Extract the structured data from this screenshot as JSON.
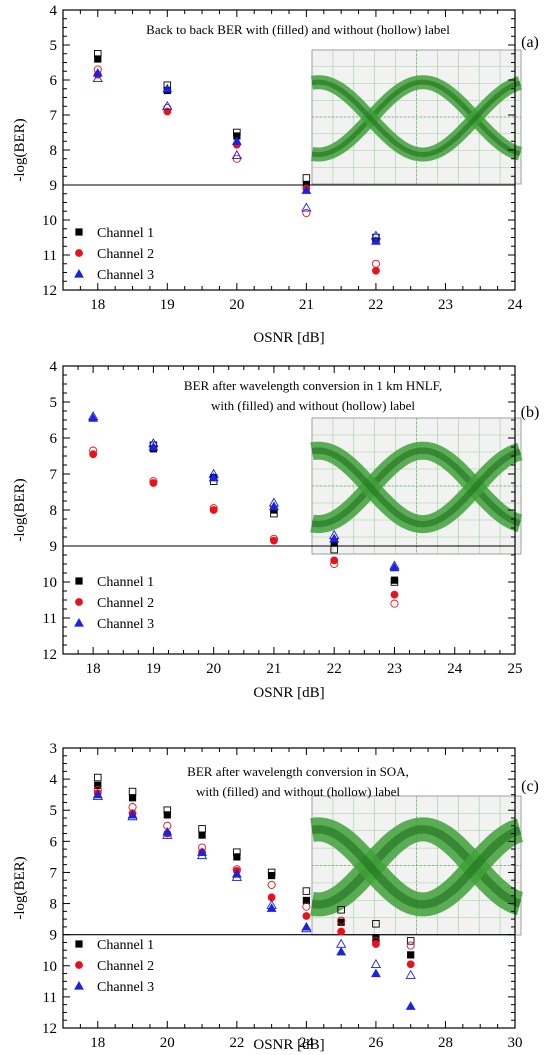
{
  "chart_data": [
    {
      "panel": "(a)",
      "type": "scatter",
      "title_lines": [
        "Back to back BER with (filled) and without (hollow) label"
      ],
      "xlabel": "OSNR [dB]",
      "ylabel": "-log(BER)",
      "xlim": [
        17.5,
        24
      ],
      "ylim": [
        4,
        12
      ],
      "y_inverted": true,
      "xticks": [
        18,
        19,
        20,
        21,
        22,
        23,
        24
      ],
      "yticks": [
        4,
        5,
        6,
        7,
        8,
        9,
        10,
        11,
        12
      ],
      "threshold": 9,
      "inset": "eye diagram",
      "legend_position": "bottom-left",
      "series": [
        {
          "name": "Channel 1",
          "color": "#000000",
          "marker": "square",
          "filled": {
            "x": [
              18,
              19,
              20,
              21,
              22
            ],
            "y": [
              5.4,
              6.3,
              7.6,
              9.0,
              10.6
            ]
          },
          "hollow": {
            "x": [
              18,
              19,
              20,
              21,
              22
            ],
            "y": [
              5.25,
              6.15,
              7.5,
              8.8,
              10.5
            ]
          }
        },
        {
          "name": "Channel 2",
          "color": "#e8121b",
          "marker": "circle",
          "filled": {
            "x": [
              18,
              19,
              20,
              21,
              22
            ],
            "y": [
              5.85,
              6.9,
              7.85,
              9.1,
              11.45
            ]
          },
          "hollow": {
            "x": [
              18,
              19,
              20,
              21,
              22
            ],
            "y": [
              5.7,
              6.8,
              8.25,
              9.8,
              11.25
            ]
          }
        },
        {
          "name": "Channel 3",
          "color": "#1a23e0",
          "marker": "triangle",
          "filled": {
            "x": [
              18,
              19,
              20,
              21,
              22
            ],
            "y": [
              5.8,
              6.25,
              7.75,
              9.15,
              10.6
            ]
          },
          "hollow": {
            "x": [
              18,
              19,
              20,
              21,
              22
            ],
            "y": [
              5.95,
              6.75,
              8.15,
              9.65,
              10.45
            ]
          }
        }
      ]
    },
    {
      "panel": "(b)",
      "type": "scatter",
      "title_lines": [
        "BER after wavelength conversion in 1 km HNLF,",
        "with (filled) and without (hollow) label"
      ],
      "xlabel": "OSNR [dB]",
      "ylabel": "-log(BER)",
      "xlim": [
        17.5,
        25
      ],
      "ylim": [
        4,
        12
      ],
      "y_inverted": true,
      "xticks": [
        18,
        19,
        20,
        21,
        22,
        23,
        24,
        25
      ],
      "yticks": [
        4,
        5,
        6,
        7,
        8,
        9,
        10,
        11,
        12
      ],
      "threshold": 9,
      "inset": "eye diagram",
      "legend_position": "bottom-left",
      "series": [
        {
          "name": "Channel 1",
          "color": "#000000",
          "marker": "square",
          "filled": {
            "x": [
              19,
              20,
              21,
              22,
              23
            ],
            "y": [
              6.3,
              7.1,
              8.0,
              8.9,
              9.95
            ]
          },
          "hollow": {
            "x": [
              19,
              20,
              21,
              22,
              23
            ],
            "y": [
              6.2,
              7.2,
              8.1,
              9.1,
              10.0
            ]
          }
        },
        {
          "name": "Channel 2",
          "color": "#e8121b",
          "marker": "circle",
          "filled": {
            "x": [
              18,
              19,
              20,
              21,
              22,
              23
            ],
            "y": [
              6.45,
              7.25,
              8.0,
              8.85,
              9.4,
              10.35
            ]
          },
          "hollow": {
            "x": [
              18,
              19,
              20,
              21,
              22,
              23
            ],
            "y": [
              6.35,
              7.2,
              7.95,
              8.8,
              9.5,
              10.6
            ]
          }
        },
        {
          "name": "Channel 3",
          "color": "#1a23e0",
          "marker": "triangle",
          "filled": {
            "x": [
              18,
              19,
              20,
              21,
              22,
              23
            ],
            "y": [
              5.45,
              6.25,
              7.1,
              7.9,
              8.8,
              9.6
            ]
          },
          "hollow": {
            "x": [
              18,
              19,
              20,
              21,
              22,
              23
            ],
            "y": [
              5.4,
              6.15,
              7.0,
              7.8,
              8.7,
              9.55
            ]
          }
        }
      ]
    },
    {
      "panel": "(c)",
      "type": "scatter",
      "title_lines": [
        "BER after wavelength conversion in SOA,",
        "with (filled) and without (hollow) label"
      ],
      "xlabel": "OSNR [dB]",
      "ylabel": "-log(BER)",
      "xlim": [
        17,
        30
      ],
      "ylim": [
        3,
        12
      ],
      "y_inverted": true,
      "xticks": [
        18,
        20,
        22,
        24,
        26,
        28,
        30
      ],
      "yticks": [
        3,
        4,
        5,
        6,
        7,
        8,
        9,
        10,
        11,
        12
      ],
      "threshold": 9,
      "inset": "eye diagram",
      "legend_position": "bottom-left",
      "series": [
        {
          "name": "Channel 1",
          "color": "#000000",
          "marker": "square",
          "filled": {
            "x": [
              18,
              19,
              20,
              21,
              22,
              23,
              24,
              25,
              26,
              27
            ],
            "y": [
              4.2,
              4.6,
              5.15,
              5.8,
              6.5,
              7.1,
              7.9,
              8.6,
              9.1,
              9.65
            ]
          },
          "hollow": {
            "x": [
              18,
              19,
              20,
              21,
              22,
              23,
              24,
              25,
              26,
              27
            ],
            "y": [
              3.95,
              4.4,
              5.0,
              5.6,
              6.35,
              7.0,
              7.6,
              8.2,
              8.65,
              9.2
            ]
          }
        },
        {
          "name": "Channel 2",
          "color": "#e8121b",
          "marker": "circle",
          "filled": {
            "x": [
              18,
              19,
              20,
              21,
              22,
              23,
              24,
              25,
              26,
              27
            ],
            "y": [
              4.45,
              5.1,
              5.75,
              6.35,
              6.95,
              7.8,
              8.4,
              8.9,
              9.3,
              9.95
            ]
          },
          "hollow": {
            "x": [
              18,
              19,
              20,
              21,
              22,
              23,
              24,
              25,
              26,
              27
            ],
            "y": [
              4.35,
              4.9,
              5.5,
              6.2,
              6.9,
              7.4,
              8.1,
              8.55,
              9.2,
              9.35
            ]
          }
        },
        {
          "name": "Channel 3",
          "color": "#1a23e0",
          "marker": "triangle",
          "filled": {
            "x": [
              18,
              19,
              20,
              21,
              22,
              23,
              24,
              25,
              26,
              27
            ],
            "y": [
              4.5,
              5.15,
              5.7,
              6.35,
              7.05,
              8.15,
              8.75,
              9.55,
              10.25,
              11.3
            ]
          },
          "hollow": {
            "x": [
              18,
              19,
              20,
              21,
              22,
              23,
              24,
              25,
              26,
              27
            ],
            "y": [
              4.55,
              5.2,
              5.8,
              6.45,
              7.15,
              8.05,
              8.8,
              9.3,
              9.95,
              10.3
            ]
          }
        }
      ]
    }
  ]
}
